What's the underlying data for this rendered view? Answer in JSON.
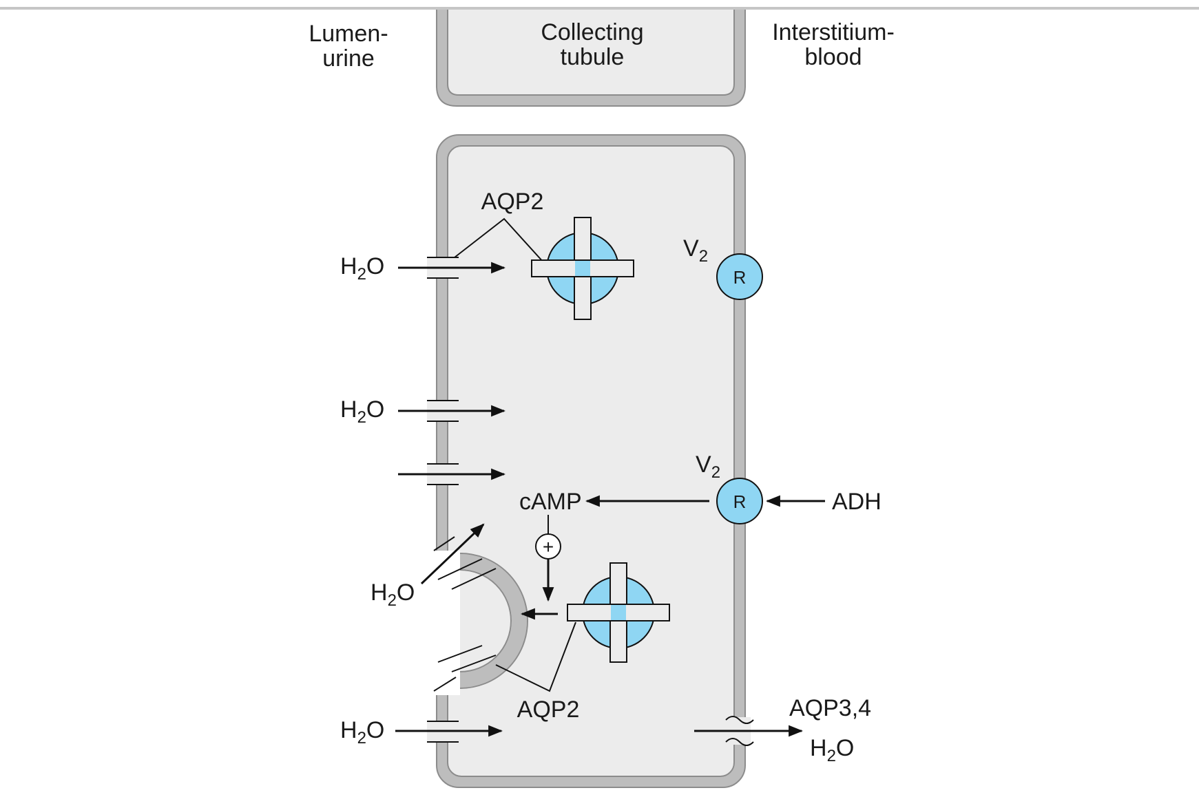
{
  "labels": {
    "lumen_line1": "Lumen-",
    "lumen_line2": "urine",
    "tubule_line1": "Collecting",
    "tubule_line2": "tubule",
    "interstitium_line1": "Interstitium-",
    "interstitium_line2": "blood",
    "aqp2_top": "AQP2",
    "aqp2_bottom": "AQP2",
    "aqp34": "AQP3,4",
    "camp": "cAMP",
    "adh": "ADH",
    "receptor": "R",
    "plus": "+"
  },
  "water": {
    "base": "H",
    "subscript": "2",
    "tail": "O"
  },
  "v2": {
    "base": "V",
    "subscript": "2"
  },
  "colors": {
    "membrane": "#bdbdbd",
    "membrane_edge": "#8c8c8c",
    "cytoplasm": "#ececec",
    "channel_fill": "#8fd6f3",
    "receptor_fill": "#8fd6f3",
    "line": "#111111"
  },
  "icons": {
    "channel": "aquaporin-channel-icon",
    "receptor": "v2-receptor-icon",
    "arrow": "arrow-icon",
    "stimulation": "plus-circle-icon"
  }
}
